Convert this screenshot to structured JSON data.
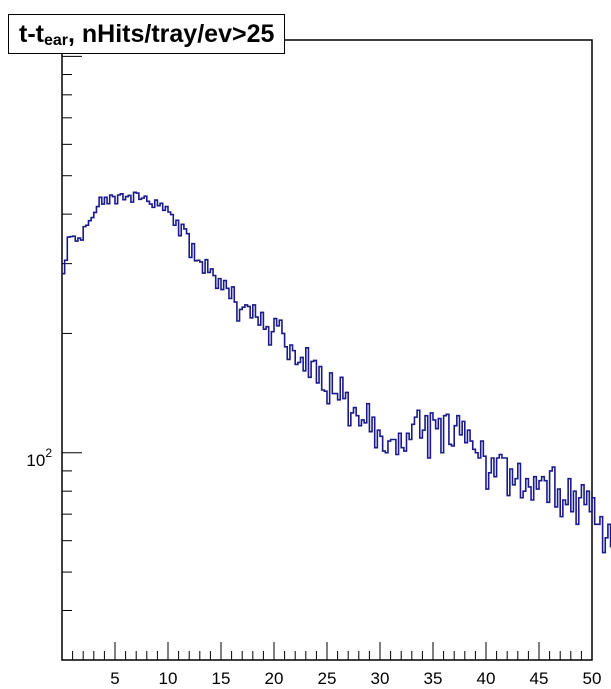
{
  "chart_data": {
    "type": "line",
    "title": {
      "main": "t-t",
      "sub": "ear",
      "rest": ", nHits/tray/ev>25"
    },
    "xlabel": "",
    "ylabel": "",
    "xlim": [
      0,
      50
    ],
    "ylim": [
      30,
      1100
    ],
    "yscale": "log",
    "grid": false,
    "line_color": "#1a1a8c",
    "x_ticks": [
      5,
      10,
      15,
      20,
      25,
      30,
      35,
      40,
      45,
      50
    ],
    "x_tick_labels": [
      "5",
      "10",
      "15",
      "20",
      "25",
      "30",
      "35",
      "40",
      "45",
      "50"
    ],
    "y_tick_label": {
      "base": "10",
      "exponent": "2",
      "value": 100
    },
    "bin_width": 0.25,
    "series": [
      {
        "values": [
          283,
          306,
          350,
          351,
          352,
          342,
          348,
          344,
          372,
          375,
          385,
          392,
          404,
          418,
          441,
          424,
          441,
          425,
          447,
          443,
          425,
          447,
          450,
          435,
          443,
          446,
          429,
          454,
          452,
          436,
          439,
          444,
          431,
          424,
          416,
          434,
          420,
          426,
          409,
          418,
          405,
          399,
          375,
          386,
          353,
          377,
          367,
          357,
          311,
          337,
          305,
          306,
          303,
          284,
          307,
          285,
          291,
          280,
          260,
          275,
          258,
          272,
          260,
          245,
          262,
          240,
          215,
          230,
          233,
          236,
          234,
          219,
          236,
          220,
          210,
          226,
          205,
          208,
          187,
          202,
          218,
          209,
          216,
          200,
          185,
          172,
          187,
          181,
          167,
          169,
          174,
          161,
          184,
          155,
          170,
          171,
          150,
          165,
          144,
          143,
          133,
          159,
          141,
          141,
          136,
          155,
          137,
          142,
          117,
          126,
          130,
          124,
          117,
          121,
          119,
          133,
          113,
          123,
          103,
          114,
          110,
          101,
          100,
          107,
          108,
          108,
          99,
          112,
          103,
          101,
          112,
          108,
          118,
          123,
          128,
          109,
          114,
          124,
          97,
          126,
          121,
          115,
          122,
          100,
          124,
          125,
          105,
          104,
          117,
          124,
          111,
          120,
          106,
          114,
          107,
          102,
          100,
          97,
          107,
          98,
          81,
          89,
          97,
          87,
          97,
          99,
          97,
          97,
          78,
          91,
          83,
          86,
          94,
          77,
          80,
          86,
          82,
          76,
          87,
          81,
          85,
          87,
          85,
          75,
          90,
          92,
          73,
          81,
          69,
          76,
          74,
          86,
          71,
          80,
          66,
          77,
          83,
          74,
          80,
          71,
          77,
          66,
          66,
          69,
          56,
          61,
          66,
          58,
          62,
          65,
          63,
          60,
          60,
          62,
          52,
          68,
          55,
          66,
          56,
          63,
          61,
          56,
          56,
          71,
          58,
          55,
          64,
          52,
          66,
          63,
          68,
          64,
          60,
          56,
          57,
          59,
          63,
          60,
          54,
          49,
          55,
          61,
          56,
          58,
          62,
          56,
          52,
          56,
          45,
          64,
          56,
          58,
          45,
          46,
          45,
          42,
          38
        ]
      }
    ]
  }
}
